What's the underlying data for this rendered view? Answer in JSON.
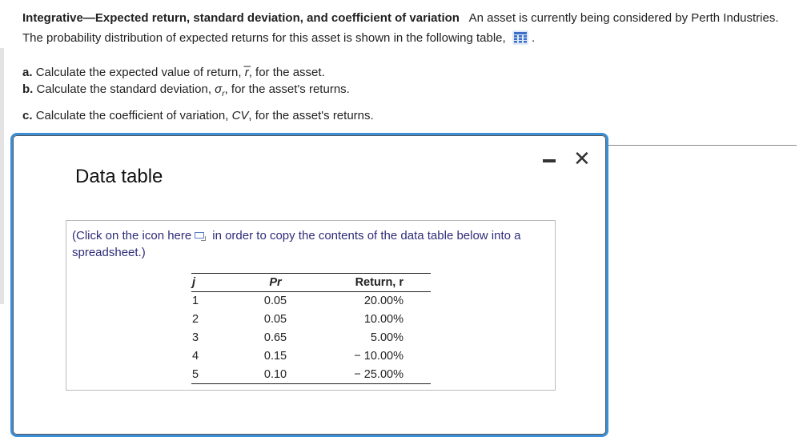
{
  "problem": {
    "title": "Integrative—Expected return, standard deviation, and coefficient of variation",
    "intro": "An asset is currently being considered by Perth Industries.  The probability distribution of expected returns for this asset is shown in the following table,",
    "intro_end": ".",
    "parts": [
      {
        "letter": "a.",
        "pre": "Calculate the expected value of return, ",
        "sym": "r̅",
        "post": ", for the asset."
      },
      {
        "letter": "b.",
        "pre": "Calculate the standard deviation, ",
        "sym": "σ",
        "sub": "r",
        "post": ", for the asset's returns."
      },
      {
        "letter": "c.",
        "pre": "Calculate the coefficient of variation, ",
        "sym": "CV",
        "post": ", for the asset's returns."
      }
    ]
  },
  "modal": {
    "title": "Data table",
    "note_pre": "(Click on the icon here",
    "note_post": "in order to copy the contents of the data table below into a spreadsheet.)",
    "columns": [
      "j",
      "Pr",
      "Return, r"
    ],
    "rows": [
      [
        "1",
        "0.05",
        "20.00%"
      ],
      [
        "2",
        "0.05",
        "10.00%"
      ],
      [
        "3",
        "0.65",
        "5.00%"
      ],
      [
        "4",
        "0.15",
        "− 10.00%"
      ],
      [
        "5",
        "0.10",
        "− 25.00%"
      ]
    ],
    "close": "✕"
  },
  "colors": {
    "accent": "#3b8ed6",
    "note_text": "#2d2d7a"
  }
}
